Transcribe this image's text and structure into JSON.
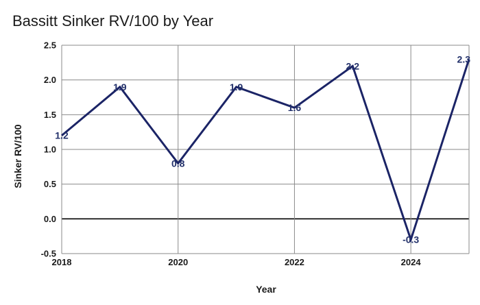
{
  "chart_data": {
    "type": "line",
    "title": "Bassitt Sinker RV/100 by Year",
    "xlabel": "Year",
    "ylabel": "Sinker RV/100",
    "x": [
      2018,
      2019,
      2020,
      2021,
      2022,
      2023,
      2024,
      2025
    ],
    "series": [
      {
        "values": [
          1.2,
          1.9,
          0.8,
          1.9,
          1.6,
          2.2,
          -0.3,
          2.3
        ]
      }
    ],
    "data_labels": [
      "1.2",
      "1.9",
      "0.8",
      "1.9",
      "1.6",
      "2.2",
      "-0.3",
      "2.3"
    ],
    "xlim": [
      2018,
      2025
    ],
    "ylim": [
      -0.5,
      2.5
    ],
    "x_ticks": [
      "2018",
      "2020",
      "2022",
      "2024"
    ],
    "y_ticks": [
      "-0.5",
      "0.0",
      "0.5",
      "1.0",
      "1.5",
      "2.0",
      "2.5"
    ],
    "grid": true,
    "colors": {
      "line": "#1b2466",
      "labels": "#22306a",
      "grid": "#8a8a8a"
    }
  }
}
